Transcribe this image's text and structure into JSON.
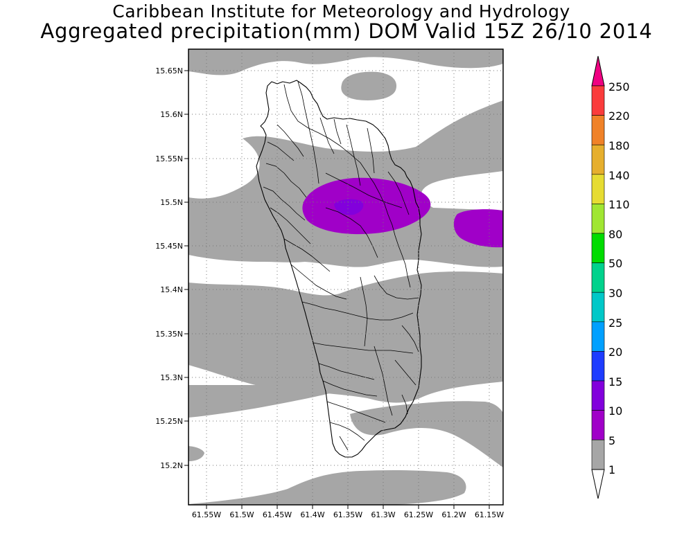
{
  "header": {
    "title_line1": "Caribbean Institute for Meteorology and Hydrology",
    "title_line2": "Aggregated precipitation(mm) DOM Valid 15Z 26/10 2014"
  },
  "map": {
    "lat_ticks": [
      "15.65N",
      "15.6N",
      "15.55N",
      "15.5N",
      "15.45N",
      "15.4N",
      "15.35N",
      "15.3N",
      "15.25N",
      "15.2N"
    ],
    "lon_ticks": [
      "61.55W",
      "61.5W",
      "61.45W",
      "61.4W",
      "61.35W",
      "61.3W",
      "61.25W",
      "61.2W",
      "61.15W"
    ],
    "gridlines": "dotted",
    "colors": {
      "band_1_5": "#a6a6a6",
      "band_5_10": "#a000c8",
      "band_10_15": "#8200dc"
    }
  },
  "colorbar": {
    "labels": [
      "1",
      "5",
      "10",
      "15",
      "20",
      "25",
      "30",
      "50",
      "80",
      "110",
      "140",
      "180",
      "220",
      "250"
    ],
    "colors": [
      "#a6a6a6",
      "#a000c8",
      "#8200dc",
      "#1e3cff",
      "#00a0ff",
      "#00c8c8",
      "#00d28c",
      "#00dc00",
      "#a0e632",
      "#e6dc32",
      "#e6af2d",
      "#f08228",
      "#fa3c3c",
      "#f00082"
    ],
    "extend_low_color": "#ffffff",
    "extend_high_color": "#f00082"
  }
}
